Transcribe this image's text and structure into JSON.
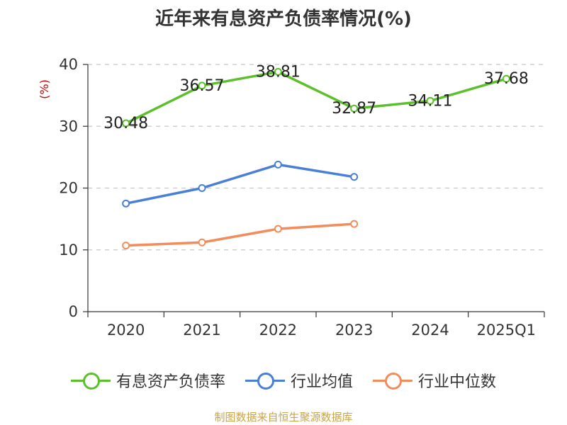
{
  "chart_data": {
    "type": "line",
    "title": "近年来有息资产负债率情况(%)",
    "ylabel": "(%)",
    "categories": [
      "2020",
      "2021",
      "2022",
      "2023",
      "2024",
      "2025Q1"
    ],
    "ylim": [
      0,
      40
    ],
    "yticks": [
      "0",
      "10",
      "20",
      "30",
      "40"
    ],
    "grid": true,
    "legend_position": "bottom",
    "series": [
      {
        "name": "有息资产负债率",
        "color": "#5cc02b",
        "values": [
          30.48,
          36.57,
          38.81,
          32.87,
          34.11,
          37.68
        ],
        "labels": [
          "30.48",
          "36.57",
          "38.81",
          "32.87",
          "34.11",
          "37.68"
        ]
      },
      {
        "name": "行业均值",
        "color": "#4a7fd8",
        "values": [
          17.5,
          20.0,
          23.8,
          21.8,
          null,
          null
        ]
      },
      {
        "name": "行业中位数",
        "color": "#f28c5b",
        "values": [
          10.7,
          11.2,
          13.4,
          14.2,
          null,
          null
        ]
      }
    ]
  },
  "footer": {
    "source": "制图数据来自恒生聚源数据库"
  }
}
